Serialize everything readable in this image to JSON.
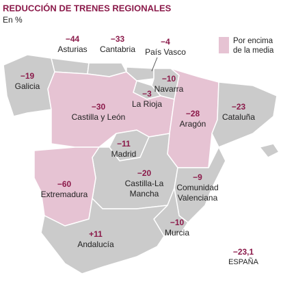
{
  "header": {
    "title": "REDUCCIÓN DE TRENES REGIONALES",
    "subtitle": "En %"
  },
  "legend": {
    "label": [
      "Por encima",
      "de la media"
    ]
  },
  "regions": [
    {
      "name": [
        "Galicia"
      ],
      "value": "−19"
    },
    {
      "name": [
        "Asturias"
      ],
      "value": "−44"
    },
    {
      "name": [
        "Cantabria"
      ],
      "value": "−33"
    },
    {
      "name": [
        "País Vasco"
      ],
      "value": "−4"
    },
    {
      "name": [
        "Navarra"
      ],
      "value": "−10"
    },
    {
      "name": [
        "La Rioja"
      ],
      "value": "−3"
    },
    {
      "name": [
        "Castilla y León"
      ],
      "value": "−30"
    },
    {
      "name": [
        "Aragón"
      ],
      "value": "−28"
    },
    {
      "name": [
        "Cataluña"
      ],
      "value": "−23"
    },
    {
      "name": [
        "Madrid"
      ],
      "value": "−11"
    },
    {
      "name": [
        "Castilla-La",
        "Mancha"
      ],
      "value": "−20"
    },
    {
      "name": [
        "Extremadura"
      ],
      "value": "−60"
    },
    {
      "name": [
        "Comunidad",
        "Valenciana"
      ],
      "value": "−9"
    },
    {
      "name": [
        "Murcia"
      ],
      "value": "−10"
    },
    {
      "name": [
        "Andalucía"
      ],
      "value": "+11"
    }
  ],
  "total": {
    "name": "ESPAÑA",
    "value": "−23,1"
  }
}
